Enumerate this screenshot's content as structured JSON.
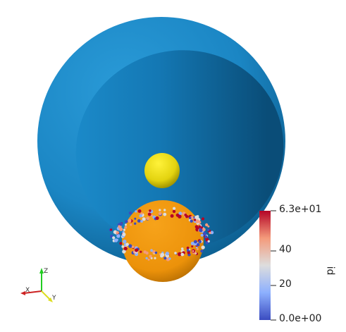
{
  "viewport": {
    "background": "#ffffff",
    "objects": [
      {
        "name": "outer-shell-cutaway",
        "color": "#1e88c8"
      },
      {
        "name": "small-sphere",
        "color": "#e7d611"
      },
      {
        "name": "large-sphere",
        "color": "#f0960a"
      },
      {
        "name": "particle-ring",
        "colormap": "coolwarm"
      }
    ]
  },
  "axes_triad": {
    "x": "X",
    "y": "Y",
    "z": "Z",
    "colors": {
      "x": "#cc2222",
      "y": "#dddd22",
      "z": "#22cc22"
    }
  },
  "colorbar": {
    "title": "id",
    "max_label": "6.3e+01",
    "tick_40": "40",
    "tick_20": "20",
    "min_label": "0.0e+00",
    "colors": [
      "#b40426",
      "#f49a7b",
      "#dddddd",
      "#8db0fe",
      "#3b4cc0"
    ]
  }
}
